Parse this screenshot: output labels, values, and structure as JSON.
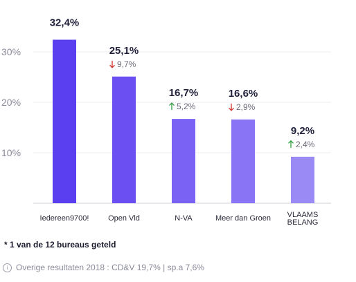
{
  "chart_data": {
    "type": "bar",
    "categories": [
      "Iedereen9700!",
      "Open Vld",
      "N-VA",
      "Meer dan Groen",
      "VLAAMS BELANG"
    ],
    "values": [
      32.4,
      25.1,
      16.7,
      16.6,
      9.2
    ],
    "value_labels": [
      "32,4%",
      "25,1%",
      "16,7%",
      "16,6%",
      "9,2%"
    ],
    "changes": [
      null,
      {
        "direction": "down",
        "label": "9,7%"
      },
      {
        "direction": "up",
        "label": "5,2%"
      },
      {
        "direction": "down",
        "label": "2,9%"
      },
      {
        "direction": "up",
        "label": "2,4%"
      }
    ],
    "yticks": [
      10,
      20,
      30
    ],
    "ytick_labels": [
      "10%",
      "20%",
      "30%"
    ],
    "ylim": [
      0,
      33
    ],
    "grid": true,
    "bar_colors": [
      "#5a3ff0",
      "#6b4ff2",
      "#7a62f4",
      "#8874f5",
      "#9a8af6"
    ],
    "up_color": "#2e9a3a",
    "down_color": "#d0342c"
  },
  "footnote": "* 1 van de 12 bureaus geteld",
  "info": {
    "icon": "info-icon",
    "text": "Overige resultaten 2018 : CD&V 19,7% | sp.a 7,6%"
  }
}
